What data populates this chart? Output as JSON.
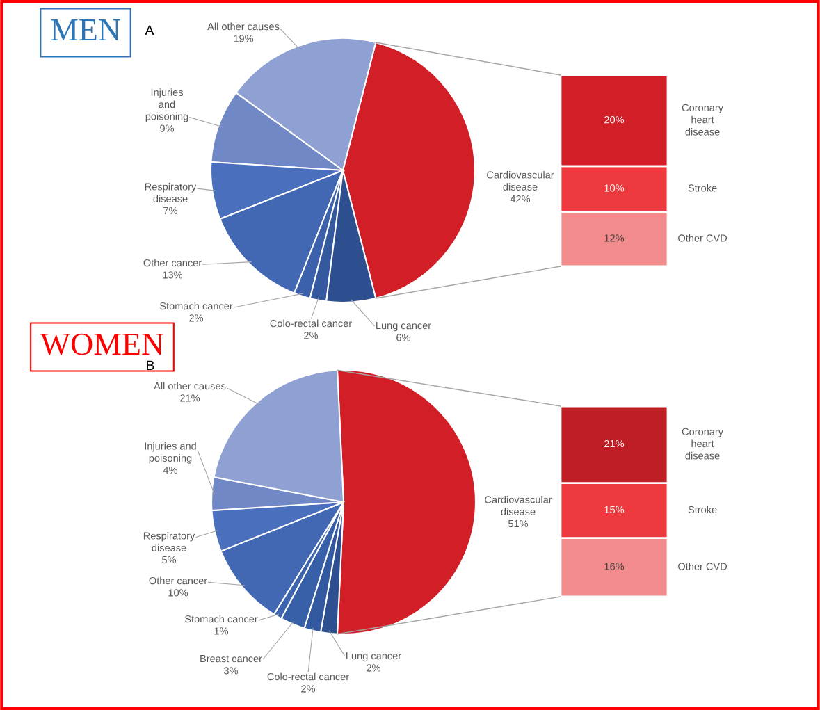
{
  "chart_data": [
    {
      "type": "pie",
      "title": "MEN",
      "annotations": [
        "A"
      ],
      "categories": [
        "Cardiovascular\ndisease",
        "All other causes",
        "Injuries\nand\npoisoning",
        "Respiratory\ndisease",
        "Other cancer",
        "Stomach cancer",
        "Colo-rectal cancer",
        "Lung cancer"
      ],
      "values": [
        42,
        19,
        9,
        7,
        13,
        2,
        2,
        6
      ],
      "value_labels": [
        "42%",
        "19%",
        "9%",
        "7%",
        "13%",
        "2%",
        "2%",
        "6%"
      ],
      "colors": [
        "#d21f27",
        "#8fa1d3",
        "#7088c6",
        "#4a6fbd",
        "#4268b4",
        "#3c61ac",
        "#34599f",
        "#2e4f8f"
      ]
    },
    {
      "type": "bar",
      "stacked": true,
      "categories": [
        null
      ],
      "tick_labels": false,
      "series": [
        {
          "name": "Other CVD",
          "color": "#f28b8b",
          "values": [
            12
          ],
          "value_labels": [
            "12%"
          ]
        },
        {
          "name": "Stroke",
          "color": "#ee3a3e",
          "values": [
            10
          ],
          "value_labels": [
            "10%"
          ]
        },
        {
          "name": "Coronary\nheart\ndisease",
          "color": "#d21f27",
          "values": [
            20
          ],
          "value_labels": [
            "20%"
          ]
        }
      ]
    },
    {
      "type": "pie",
      "title": "WOMEN",
      "annotations": [
        "B"
      ],
      "categories": [
        "Cardiovascular\ndisease",
        "Lung cancer",
        "Colo-rectal cancer",
        "Breast cancer",
        "Stomach cancer",
        "Other cancer",
        "Respiratory\ndisease",
        "Injuries and\npoisoning",
        "All other causes"
      ],
      "values": [
        51,
        2,
        2,
        3,
        1,
        10,
        5,
        4,
        21
      ],
      "value_labels": [
        "51%",
        "2%",
        "2%",
        "3%",
        "1%",
        "10%",
        "5%",
        "4%",
        "21%"
      ],
      "colors": [
        "#d21f27",
        "#2e4f90",
        "#3259a0",
        "#3860a8",
        "#3e64b0",
        "#4268b4",
        "#4a6fbd",
        "#7088c6",
        "#8fa1d3"
      ]
    },
    {
      "type": "bar",
      "stacked": true,
      "categories": [
        null
      ],
      "tick_labels": false,
      "series": [
        {
          "name": "Other CVD",
          "color": "#f28b8b",
          "values": [
            16
          ],
          "value_labels": [
            "16%"
          ]
        },
        {
          "name": "Stroke",
          "color": "#ee3a3e",
          "values": [
            15
          ],
          "value_labels": [
            "15%"
          ]
        },
        {
          "name": "Coronary\nheart\ndisease",
          "color": "#be1e24",
          "values": [
            21
          ],
          "value_labels": [
            "21%"
          ]
        }
      ]
    }
  ]
}
